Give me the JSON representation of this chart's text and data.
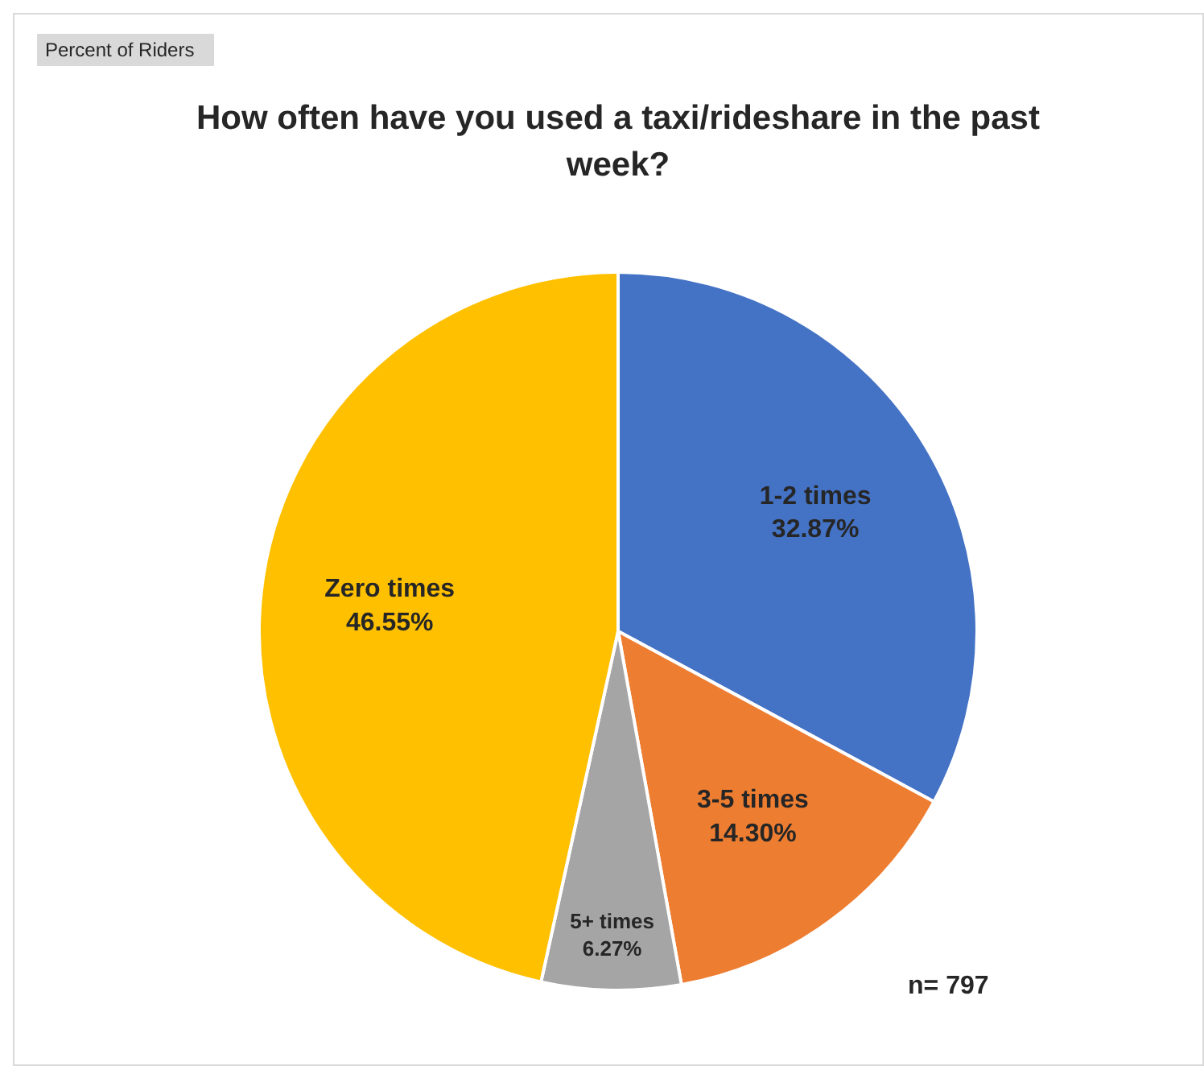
{
  "chart_data": {
    "type": "pie",
    "title": "How often have you used a taxi/rideshare in the past week?",
    "categories": [
      "1-2 times",
      "3-5 times",
      "5+ times",
      "Zero times"
    ],
    "values": [
      32.87,
      14.3,
      6.27,
      46.55
    ],
    "colors": [
      "#4472c4",
      "#ed7d31",
      "#a5a5a5",
      "#ffc000"
    ],
    "value_labels": [
      "32.87%",
      "14.30%",
      "6.27%",
      "46.55%"
    ],
    "legend": false,
    "annotations": [
      "Percent of Riders",
      "n= 797"
    ]
  }
}
